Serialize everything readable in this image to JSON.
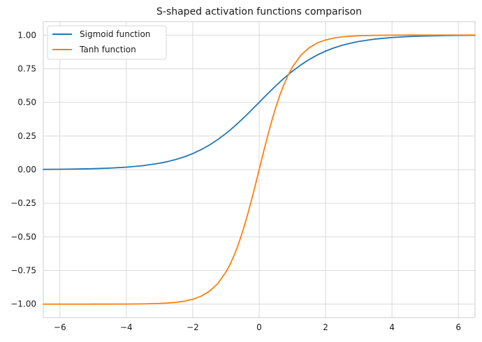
{
  "chart_data": {
    "type": "line",
    "title": "S-shaped activation functions comparison",
    "xlabel": "",
    "ylabel": "",
    "xlim": [
      -6.5,
      6.5
    ],
    "ylim": [
      -1.1,
      1.1
    ],
    "x_ticks": [
      -6,
      -4,
      -2,
      0,
      2,
      4,
      6
    ],
    "x_tick_labels": [
      "−6",
      "−4",
      "−2",
      "0",
      "2",
      "4",
      "6"
    ],
    "y_ticks": [
      -1.0,
      -0.75,
      -0.5,
      -0.25,
      0.0,
      0.25,
      0.5,
      0.75,
      1.0
    ],
    "y_tick_labels": [
      "−1.00",
      "−0.75",
      "−0.50",
      "−0.25",
      "0.00",
      "0.25",
      "0.50",
      "0.75",
      "1.00"
    ],
    "grid": true,
    "legend_position": "top-left",
    "x": [
      -6.5,
      -6.0,
      -5.5,
      -5.0,
      -4.5,
      -4.0,
      -3.5,
      -3.0,
      -2.75,
      -2.5,
      -2.25,
      -2.0,
      -1.75,
      -1.5,
      -1.25,
      -1.0,
      -0.875,
      -0.75,
      -0.625,
      -0.5,
      -0.375,
      -0.25,
      -0.125,
      0.0,
      0.125,
      0.25,
      0.375,
      0.5,
      0.625,
      0.75,
      0.875,
      1.0,
      1.25,
      1.5,
      1.75,
      2.0,
      2.25,
      2.5,
      2.75,
      3.0,
      3.5,
      4.0,
      4.5,
      5.0,
      5.5,
      6.0,
      6.5
    ],
    "series": [
      {
        "name": "Sigmoid function",
        "color": "#1f77b4",
        "values": [
          0.0015,
          0.0025,
          0.0041,
          0.0067,
          0.011,
          0.018,
          0.0293,
          0.0474,
          0.06,
          0.0759,
          0.0953,
          0.1192,
          0.148,
          0.1824,
          0.2227,
          0.2689,
          0.2942,
          0.3208,
          0.3486,
          0.3775,
          0.4073,
          0.4378,
          0.4688,
          0.5,
          0.5312,
          0.5622,
          0.5927,
          0.6225,
          0.6514,
          0.6792,
          0.7058,
          0.7311,
          0.7773,
          0.8176,
          0.852,
          0.8808,
          0.9047,
          0.9241,
          0.94,
          0.9526,
          0.9707,
          0.982,
          0.989,
          0.9933,
          0.9959,
          0.9975,
          0.9985
        ]
      },
      {
        "name": "Tanh function",
        "color": "#ff7f0e",
        "values": [
          -1.0,
          -1.0,
          -1.0,
          -0.9999,
          -0.9998,
          -0.9993,
          -0.9982,
          -0.9951,
          -0.9918,
          -0.9866,
          -0.978,
          -0.964,
          -0.9414,
          -0.9051,
          -0.8483,
          -0.7616,
          -0.7039,
          -0.6351,
          -0.5546,
          -0.4621,
          -0.3584,
          -0.2449,
          -0.1244,
          0.0,
          0.1244,
          0.2449,
          0.3584,
          0.4621,
          0.5546,
          0.6351,
          0.7039,
          0.7616,
          0.8483,
          0.9051,
          0.9414,
          0.964,
          0.978,
          0.9866,
          0.9918,
          0.9951,
          0.9982,
          0.9993,
          0.9998,
          0.9999,
          1.0,
          1.0,
          1.0
        ]
      }
    ]
  }
}
